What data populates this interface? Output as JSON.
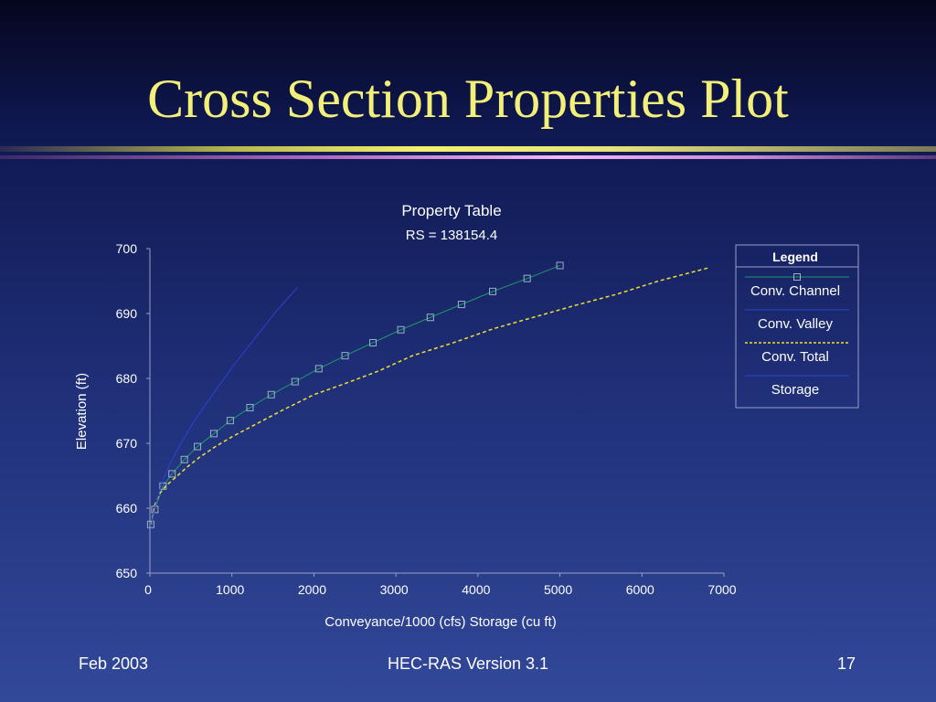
{
  "slide": {
    "title": "Cross Section Properties Plot",
    "colors": {
      "background": "#1f2f78",
      "title": "#f3f07a"
    }
  },
  "footer": {
    "left": "Feb 2003",
    "center": "HEC-RAS Version 3.1",
    "right": "17"
  },
  "chart_data": {
    "type": "line",
    "title": "Property Table",
    "subtitle": "RS = 138154.4",
    "xlabel": "Conveyance/1000 (cfs)  Storage (cu ft)",
    "ylabel": "Elevation (ft)",
    "xlim": [
      0,
      7000
    ],
    "ylim": [
      650,
      700
    ],
    "xticks": [
      0,
      1000,
      2000,
      3000,
      4000,
      5000,
      6000,
      7000
    ],
    "yticks": [
      650,
      660,
      670,
      680,
      690,
      700
    ],
    "grid": false,
    "legend_title": "Legend",
    "legend_position": "right",
    "series": [
      {
        "name": "Conv. Channel",
        "color": "#1e9a68",
        "style": "solid",
        "marker": "square",
        "x": [
          10,
          60,
          160,
          270,
          420,
          580,
          780,
          980,
          1220,
          1480,
          1770,
          2060,
          2380,
          2720,
          3060,
          3420,
          3800,
          4180,
          4600,
          5000
        ],
        "y": [
          657.5,
          659.8,
          663.4,
          665.3,
          667.5,
          669.5,
          671.5,
          673.5,
          675.5,
          677.5,
          679.5,
          681.5,
          683.5,
          685.5,
          687.5,
          689.4,
          691.4,
          693.4,
          695.4,
          697.4
        ]
      },
      {
        "name": "Conv. Valley",
        "color": "#2b44c8",
        "style": "solid",
        "marker": "none",
        "x": [],
        "y": []
      },
      {
        "name": "Conv. Total",
        "color": "#f0e030",
        "style": "dashed",
        "marker": "none",
        "x": [
          20,
          60,
          120,
          200,
          300,
          450,
          600,
          800,
          1000,
          1300,
          1600,
          2000,
          2400,
          2800,
          3200,
          3700,
          4200,
          4700,
          5200,
          5700,
          6200,
          6800
        ],
        "y": [
          657.5,
          660.5,
          662.3,
          663.5,
          664.6,
          666.3,
          667.8,
          669.5,
          671.0,
          673.0,
          675.0,
          677.5,
          679.3,
          681.2,
          683.5,
          685.5,
          687.7,
          689.5,
          691.3,
          693.0,
          695.0,
          697.0
        ]
      },
      {
        "name": "Storage",
        "color": "#3040d0",
        "style": "solid",
        "marker": "none",
        "x": [
          20,
          80,
          150,
          250,
          380,
          520,
          680,
          850,
          1050,
          1300,
          1550,
          1800
        ],
        "y": [
          657.5,
          661.0,
          664.0,
          667.0,
          670.0,
          673.0,
          676.0,
          679.0,
          682.5,
          686.5,
          690.5,
          694.0
        ]
      }
    ]
  }
}
